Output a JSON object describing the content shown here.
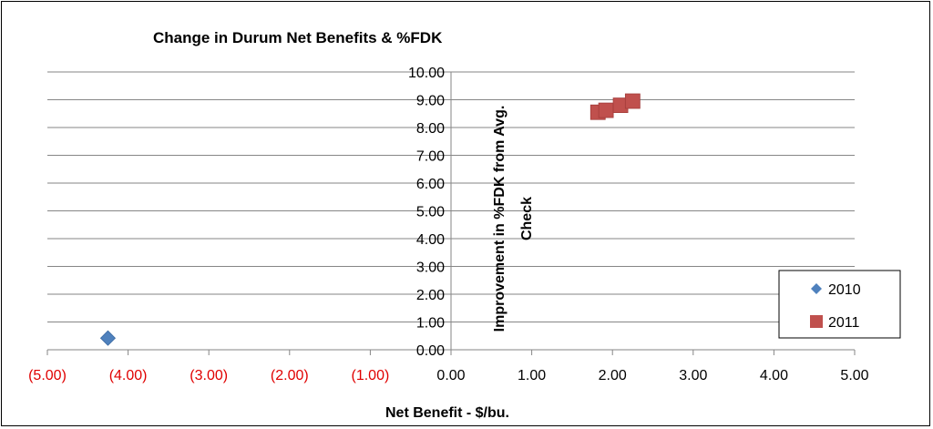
{
  "chart_data": {
    "type": "scatter",
    "title": "Change in Durum Net Benefits & %FDK",
    "xlabel": "Net Benefit - $/bu.",
    "ylabel_lines": [
      "Improvement in %FDK from Avg.",
      "Check"
    ],
    "xlim": [
      -5,
      5
    ],
    "ylim": [
      0,
      10
    ],
    "x_ticks": [
      {
        "value": -5,
        "label": "(5.00)"
      },
      {
        "value": -4,
        "label": "(4.00)"
      },
      {
        "value": -3,
        "label": "(3.00)"
      },
      {
        "value": -2,
        "label": "(2.00)"
      },
      {
        "value": -1,
        "label": "(1.00)"
      },
      {
        "value": 0,
        "label": "0.00"
      },
      {
        "value": 1,
        "label": "1.00"
      },
      {
        "value": 2,
        "label": "2.00"
      },
      {
        "value": 3,
        "label": "3.00"
      },
      {
        "value": 4,
        "label": "4.00"
      },
      {
        "value": 5,
        "label": "5.00"
      }
    ],
    "y_ticks": [
      {
        "value": 0,
        "label": "0.00"
      },
      {
        "value": 1,
        "label": "1.00"
      },
      {
        "value": 2,
        "label": "2.00"
      },
      {
        "value": 3,
        "label": "3.00"
      },
      {
        "value": 4,
        "label": "4.00"
      },
      {
        "value": 5,
        "label": "5.00"
      },
      {
        "value": 6,
        "label": "6.00"
      },
      {
        "value": 7,
        "label": "7.00"
      },
      {
        "value": 8,
        "label": "8.00"
      },
      {
        "value": 9,
        "label": "9.00"
      },
      {
        "value": 10,
        "label": "10.00"
      }
    ],
    "grid": "horizontal",
    "legend_position": "right",
    "series": [
      {
        "name": "2010",
        "marker": "diamond",
        "color": "#4f81bd",
        "points": [
          {
            "x": -4.25,
            "y": 0.42
          }
        ]
      },
      {
        "name": "2011",
        "marker": "square",
        "color": "#c0504d",
        "points": [
          {
            "x": 1.82,
            "y": 8.55
          },
          {
            "x": 1.92,
            "y": 8.62
          },
          {
            "x": 2.1,
            "y": 8.8
          },
          {
            "x": 2.25,
            "y": 8.95
          }
        ]
      }
    ]
  }
}
